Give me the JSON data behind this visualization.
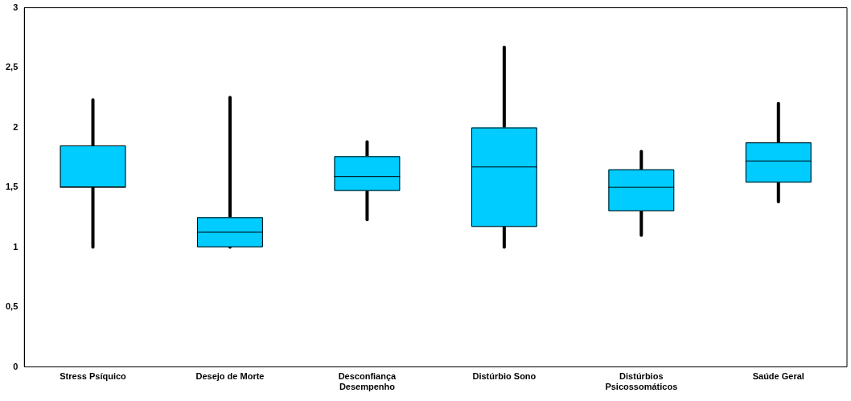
{
  "chart_data": {
    "type": "box",
    "categories": [
      "Stress Psíquico",
      "Desejo de Morte",
      "Desconfiança Desempenho",
      "Distúrbio Sono",
      "Distúrbios Psicossomáticos",
      "Saúde Geral"
    ],
    "boxes": [
      {
        "low": 1.0,
        "q1": 1.5,
        "median": 1.5,
        "q3": 1.85,
        "high": 2.23
      },
      {
        "low": 1.0,
        "q1": 1.0,
        "median": 1.125,
        "q3": 1.25,
        "high": 2.25
      },
      {
        "low": 1.23,
        "q1": 1.47,
        "median": 1.59,
        "q3": 1.76,
        "high": 1.88
      },
      {
        "low": 1.0,
        "q1": 1.17,
        "median": 1.67,
        "q3": 2.0,
        "high": 2.67
      },
      {
        "low": 1.1,
        "q1": 1.3,
        "median": 1.5,
        "q3": 1.65,
        "high": 1.8
      },
      {
        "low": 1.38,
        "q1": 1.54,
        "median": 1.72,
        "q3": 1.875,
        "high": 2.2
      }
    ],
    "color": "#00ccff",
    "ylim": [
      0,
      3
    ],
    "yticks": [
      0,
      {
        "value": 0.5,
        "label": "0,5"
      },
      1,
      {
        "value": 1.5,
        "label": "1,5"
      },
      2,
      {
        "value": 2.5,
        "label": "2,5"
      },
      3
    ],
    "grid": false,
    "legend": false
  }
}
